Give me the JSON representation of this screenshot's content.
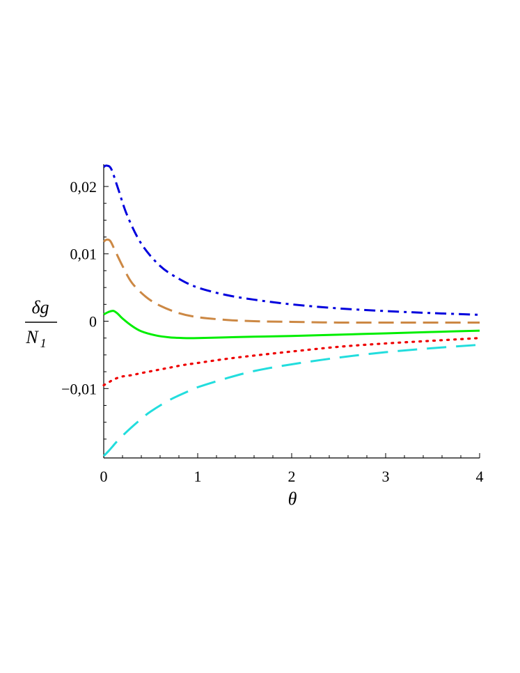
{
  "chart_data": {
    "type": "line",
    "xlabel": "θ",
    "ylabel_numerator": "δg",
    "ylabel_denominator_main": "N",
    "ylabel_denominator_sub": "1",
    "xlim": [
      0,
      4
    ],
    "ylim": [
      -0.0203,
      0.0233
    ],
    "x_ticks": [
      0,
      1,
      2,
      3,
      4
    ],
    "x_tick_labels": [
      "0",
      "1",
      "2",
      "3",
      "4"
    ],
    "y_ticks": [
      0.02,
      0.01,
      0,
      -0.01
    ],
    "y_tick_labels": [
      "0,02",
      "0,01",
      "0",
      "−0,01"
    ],
    "grid": false,
    "legend": "none",
    "series": [
      {
        "color": "#0000dd",
        "style": "dashdot",
        "x": [
          0,
          0.03,
          0.08,
          0.15,
          0.25,
          0.4,
          0.6,
          0.8,
          1.0,
          1.3,
          1.6,
          2.0,
          2.5,
          3.0,
          3.5,
          4.0
        ],
        "y": [
          0.0229,
          0.0231,
          0.0226,
          0.0198,
          0.0157,
          0.0115,
          0.0082,
          0.0063,
          0.005,
          0.0039,
          0.0032,
          0.0025,
          0.0019,
          0.0015,
          0.0012,
          0.00095
        ]
      },
      {
        "color": "#cc8844",
        "style": "dash",
        "x": [
          0,
          0.03,
          0.07,
          0.12,
          0.2,
          0.3,
          0.45,
          0.6,
          0.8,
          1.0,
          1.3,
          1.6,
          2.0,
          2.5,
          3.0,
          3.5,
          4.0
        ],
        "y": [
          0.0118,
          0.0121,
          0.0119,
          0.0105,
          0.0082,
          0.0057,
          0.0036,
          0.0023,
          0.0012,
          0.0006,
          0.0002,
          0.0,
          -0.0001,
          -0.0002,
          -0.0002,
          -0.0002,
          -0.0002
        ]
      },
      {
        "color": "#00ee00",
        "style": "solid",
        "x": [
          0,
          0.04,
          0.08,
          0.11,
          0.15,
          0.2,
          0.3,
          0.4,
          0.55,
          0.7,
          0.85,
          1.0,
          1.3,
          1.6,
          2.0,
          2.5,
          3.0,
          3.5,
          4.0
        ],
        "y": [
          0.001,
          0.0013,
          0.0015,
          0.0015,
          0.0011,
          0.0004,
          -0.0007,
          -0.0015,
          -0.0021,
          -0.0024,
          -0.0025,
          -0.0025,
          -0.0024,
          -0.0023,
          -0.0022,
          -0.002,
          -0.0018,
          -0.0016,
          -0.0014
        ]
      },
      {
        "color": "#ee0000",
        "style": "dot",
        "x": [
          0,
          0.05,
          0.1,
          0.15,
          0.2,
          0.3,
          0.4,
          0.55,
          0.7,
          0.85,
          1.0,
          1.3,
          1.6,
          2.0,
          2.5,
          3.0,
          3.5,
          4.0
        ],
        "y": [
          -0.0095,
          -0.0091,
          -0.0087,
          -0.0084,
          -0.0082,
          -0.008,
          -0.0077,
          -0.0073,
          -0.0069,
          -0.0065,
          -0.0062,
          -0.0056,
          -0.0051,
          -0.0045,
          -0.0038,
          -0.0033,
          -0.0029,
          -0.0025
        ]
      },
      {
        "color": "#22dddd",
        "style": "longdash",
        "x": [
          0,
          0.05,
          0.1,
          0.15,
          0.2,
          0.3,
          0.4,
          0.5,
          0.7,
          0.9,
          1.0,
          1.3,
          1.6,
          2.0,
          2.5,
          3.0,
          3.5,
          4.0
        ],
        "y": [
          -0.02,
          -0.0193,
          -0.0185,
          -0.0177,
          -0.017,
          -0.0157,
          -0.0145,
          -0.0134,
          -0.0117,
          -0.0104,
          -0.0098,
          -0.0085,
          -0.0074,
          -0.0064,
          -0.0054,
          -0.0046,
          -0.004,
          -0.0035
        ]
      }
    ]
  }
}
